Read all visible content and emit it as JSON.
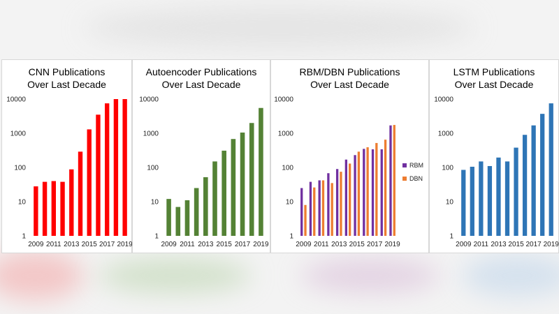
{
  "colors": {
    "cnn": "#ff0000",
    "autoencoder": "#548235",
    "rbm": "#7030a0",
    "dbn": "#ed7d31",
    "lstm": "#2e75b6"
  },
  "chart_data": [
    {
      "id": "cnn",
      "type": "bar",
      "scale": "log",
      "title_line1": "CNN Publications",
      "title_line2": "Over Last Decade",
      "y_ticks": [
        "1",
        "10",
        "100",
        "1000",
        "10000"
      ],
      "x_tick_labels": [
        "2009",
        "2011",
        "2013",
        "2015",
        "2017",
        "2019"
      ],
      "ylim": [
        1,
        10000
      ],
      "categories": [
        "2009",
        "2010",
        "2011",
        "2012",
        "2013",
        "2014",
        "2015",
        "2016",
        "2017",
        "2018",
        "2019"
      ],
      "series": [
        {
          "name": "CNN",
          "color_key": "cnn",
          "values": [
            28,
            38,
            40,
            38,
            88,
            290,
            1300,
            3500,
            7500,
            10000,
            10000
          ]
        }
      ]
    },
    {
      "id": "autoencoder",
      "type": "bar",
      "scale": "log",
      "title_line1": "Autoencoder Publications",
      "title_line2": "Over Last Decade",
      "y_ticks": [
        "1",
        "10",
        "100",
        "1000",
        "10000"
      ],
      "x_tick_labels": [
        "2009",
        "2011",
        "2013",
        "2015",
        "2017",
        "2019"
      ],
      "ylim": [
        1,
        10000
      ],
      "categories": [
        "2009",
        "2010",
        "2011",
        "2012",
        "2013",
        "2014",
        "2015",
        "2016",
        "2017",
        "2018",
        "2019"
      ],
      "series": [
        {
          "name": "Autoencoder",
          "color_key": "autoencoder",
          "values": [
            12,
            7,
            11,
            25,
            52,
            150,
            310,
            680,
            1050,
            2000,
            5500
          ]
        }
      ]
    },
    {
      "id": "rbmdbn",
      "type": "bar",
      "scale": "log",
      "title_line1": "RBM/DBN Publications",
      "title_line2": "Over Last Decade",
      "y_ticks": [
        "1",
        "10",
        "100",
        "1000",
        "10000"
      ],
      "x_tick_labels": [
        "2009",
        "2011",
        "2013",
        "2015",
        "2017",
        "2019"
      ],
      "ylim": [
        1,
        10000
      ],
      "categories": [
        "2009",
        "2010",
        "2011",
        "2012",
        "2013",
        "2014",
        "2015",
        "2016",
        "2017",
        "2018",
        "2019"
      ],
      "legend": [
        "RBM",
        "DBN"
      ],
      "series": [
        {
          "name": "RBM",
          "color_key": "rbm",
          "values": [
            25,
            38,
            42,
            68,
            90,
            170,
            230,
            350,
            340,
            340,
            1700
          ]
        },
        {
          "name": "DBN",
          "color_key": "dbn",
          "values": [
            8,
            26,
            42,
            35,
            75,
            130,
            290,
            390,
            520,
            650,
            1750
          ]
        }
      ]
    },
    {
      "id": "lstm",
      "type": "bar",
      "scale": "log",
      "title_line1": "LSTM Publications",
      "title_line2": "Over Last Decade",
      "y_ticks": [
        "1",
        "10",
        "100",
        "1000",
        "10000"
      ],
      "x_tick_labels": [
        "2009",
        "2011",
        "2013",
        "2015",
        "2017",
        "2019"
      ],
      "ylim": [
        1,
        10000
      ],
      "categories": [
        "2009",
        "2010",
        "2011",
        "2012",
        "2013",
        "2014",
        "2015",
        "2016",
        "2017",
        "2018",
        "2019"
      ],
      "series": [
        {
          "name": "LSTM",
          "color_key": "lstm",
          "values": [
            85,
            105,
            150,
            110,
            195,
            150,
            380,
            900,
            1700,
            3700,
            7500
          ]
        }
      ]
    }
  ]
}
